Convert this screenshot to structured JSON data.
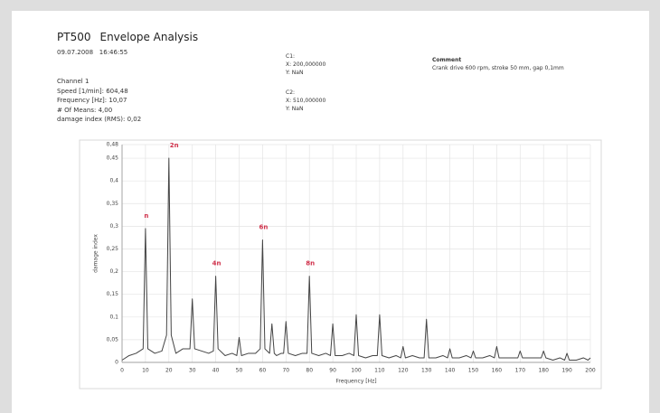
{
  "header": {
    "code": "PT500",
    "title": "Envelope Analysis",
    "date": "09.07.2008",
    "time": "16:46:55"
  },
  "channel": {
    "name": "Channel 1",
    "lines": [
      "Speed [1/min]: 604,48",
      "Frequency [Hz]: 10,07",
      "# Of Means: 4,00",
      "damage index (RMS): 0,02"
    ]
  },
  "cursors": [
    {
      "name": "C1:",
      "x": "X: 200,000000",
      "y": "Y: NaN"
    },
    {
      "name": "C2:",
      "x": "X: 510,000000",
      "y": "Y: NaN"
    }
  ],
  "comment": {
    "title": "Comment",
    "text": "Crank drive 600 rpm, stroke 50 mm, gap 0,1mm"
  },
  "chart_data": {
    "type": "line",
    "xlabel": "Frequency [Hz]",
    "ylabel": "damage index",
    "x": [
      0,
      3,
      6,
      9,
      10,
      11,
      14,
      17,
      19,
      20,
      21,
      23,
      26,
      29,
      30,
      31,
      34,
      37,
      39,
      40,
      41,
      44,
      47,
      49,
      50,
      51,
      54,
      57,
      59,
      60,
      61,
      63,
      64,
      65,
      66,
      68,
      69,
      70,
      71,
      74,
      77,
      79,
      80,
      81,
      84,
      87,
      89,
      90,
      91,
      94,
      97,
      99,
      100,
      101,
      104,
      107,
      109,
      110,
      111,
      114,
      117,
      119,
      120,
      121,
      124,
      127,
      129,
      130,
      131,
      134,
      137,
      139,
      140,
      141,
      144,
      147,
      149,
      150,
      151,
      154,
      157,
      159,
      160,
      161,
      164,
      167,
      169,
      170,
      171,
      174,
      177,
      179,
      180,
      181,
      184,
      187,
      189,
      190,
      191,
      194,
      197,
      199,
      200
    ],
    "series": [
      {
        "name": "damage index",
        "color": "#444444",
        "values": [
          0.005,
          0.015,
          0.02,
          0.03,
          0.295,
          0.03,
          0.02,
          0.025,
          0.06,
          0.45,
          0.06,
          0.02,
          0.03,
          0.03,
          0.14,
          0.03,
          0.025,
          0.02,
          0.025,
          0.19,
          0.03,
          0.015,
          0.02,
          0.015,
          0.055,
          0.015,
          0.02,
          0.02,
          0.03,
          0.27,
          0.03,
          0.02,
          0.085,
          0.02,
          0.015,
          0.02,
          0.02,
          0.09,
          0.02,
          0.015,
          0.02,
          0.02,
          0.19,
          0.02,
          0.015,
          0.02,
          0.015,
          0.085,
          0.015,
          0.015,
          0.02,
          0.015,
          0.105,
          0.015,
          0.01,
          0.015,
          0.015,
          0.105,
          0.015,
          0.01,
          0.015,
          0.01,
          0.035,
          0.01,
          0.015,
          0.01,
          0.01,
          0.095,
          0.01,
          0.01,
          0.015,
          0.01,
          0.03,
          0.01,
          0.01,
          0.015,
          0.01,
          0.025,
          0.01,
          0.01,
          0.015,
          0.01,
          0.035,
          0.01,
          0.01,
          0.01,
          0.01,
          0.025,
          0.01,
          0.01,
          0.01,
          0.01,
          0.025,
          0.01,
          0.005,
          0.01,
          0.005,
          0.02,
          0.005,
          0.005,
          0.01,
          0.005,
          0.01
        ]
      }
    ],
    "xlim": [
      0,
      200
    ],
    "xticks": [
      0,
      10,
      20,
      30,
      40,
      50,
      60,
      70,
      80,
      90,
      100,
      110,
      120,
      130,
      140,
      150,
      160,
      170,
      180,
      190,
      200
    ],
    "ylim": [
      0,
      0.48
    ],
    "yticks": [
      0,
      {
        "value": 0.05,
        "label": "0,05"
      },
      {
        "value": 0.1,
        "label": "0,1"
      },
      {
        "value": 0.15,
        "label": "0,15"
      },
      {
        "value": 0.2,
        "label": "0,2"
      },
      {
        "value": 0.25,
        "label": "0,25"
      },
      {
        "value": 0.3,
        "label": "0,3"
      },
      {
        "value": 0.35,
        "label": "0,35"
      },
      {
        "value": 0.4,
        "label": "0,4"
      },
      {
        "value": 0.45,
        "label": "0,45"
      },
      {
        "value": 0.48,
        "label": "0,48"
      }
    ],
    "grid": true,
    "annotations": [
      {
        "text": "n",
        "x": 10,
        "y": 0.295
      },
      {
        "text": "2n",
        "x": 20,
        "y": 0.45
      },
      {
        "text": "4n",
        "x": 40,
        "y": 0.19
      },
      {
        "text": "6n",
        "x": 60,
        "y": 0.27
      },
      {
        "text": "8n",
        "x": 80,
        "y": 0.19
      }
    ],
    "annotation_color": "#d0304a"
  }
}
